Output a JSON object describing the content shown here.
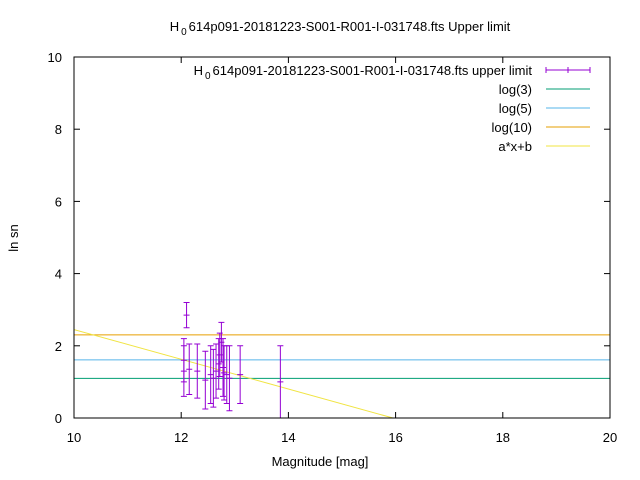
{
  "chart_data": {
    "type": "errorbar",
    "title": [
      "H",
      "0",
      "614p091-20181223-S001-R001-I-031748.fts Upper limit"
    ],
    "x_label": "Magnitude [mag]",
    "y_label": "ln sn",
    "xlim": [
      10,
      20
    ],
    "ylim": [
      0,
      10
    ],
    "xticks": [
      10,
      12,
      14,
      16,
      18,
      20
    ],
    "yticks": [
      0,
      2,
      4,
      6,
      8,
      10
    ],
    "grid": false,
    "legend": "top-right",
    "series": [
      {
        "name": [
          "H",
          "0",
          "614p091-20181223-S001-R001-I-031748.fts upper limit"
        ],
        "kind": "errorbars",
        "color": "#9400d3",
        "x": [
          12.05,
          12.1,
          12.05,
          12.15,
          12.3,
          12.45,
          12.55,
          12.6,
          12.65,
          12.7,
          12.72,
          12.75,
          12.78,
          12.8,
          12.85,
          12.9,
          13.1,
          13.85
        ],
        "values": [
          1.3,
          2.85,
          1.6,
          1.35,
          1.3,
          1.05,
          1.2,
          1.1,
          1.3,
          1.5,
          1.75,
          2.1,
          1.4,
          1.25,
          1.2,
          1.1,
          1.2,
          1.0
        ],
        "errors": [
          0.7,
          0.35,
          0.6,
          0.7,
          0.75,
          0.8,
          0.8,
          0.8,
          0.75,
          0.7,
          0.6,
          0.55,
          0.8,
          0.75,
          0.8,
          0.9,
          0.8,
          1.0
        ]
      },
      {
        "name": "log(3)",
        "kind": "line",
        "color": "#009e73",
        "x": [
          10,
          20
        ],
        "values": [
          1.0986,
          1.0986
        ]
      },
      {
        "name": "log(5)",
        "kind": "line",
        "color": "#56b4e9",
        "x": [
          10,
          20
        ],
        "values": [
          1.6094,
          1.6094
        ]
      },
      {
        "name": "log(10)",
        "kind": "line",
        "color": "#e69f00",
        "x": [
          10,
          20
        ],
        "values": [
          2.3026,
          2.3026
        ]
      },
      {
        "name": "a*x+b",
        "kind": "line",
        "color": "#f0e442",
        "x": [
          10,
          15.95
        ],
        "values": [
          2.45,
          0
        ]
      }
    ]
  }
}
